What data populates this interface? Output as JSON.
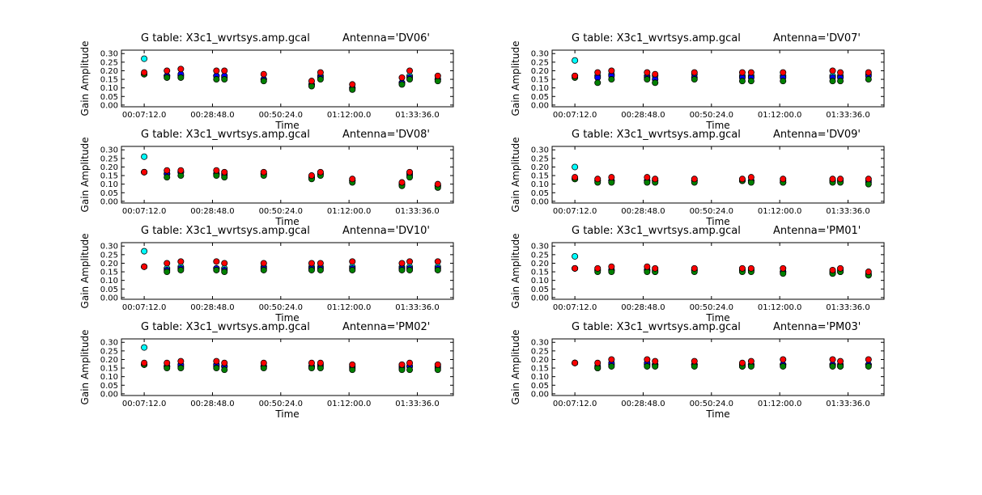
{
  "figure": {
    "background": "#ffffff"
  },
  "colors": {
    "cyan": "#00ffff",
    "blue": "#0000ff",
    "green": "#008000",
    "red": "#ff0000"
  },
  "chart_data": [
    {
      "type": "scatter",
      "title": "G table: X3c1_wvrtsys.amp.gcal",
      "antenna_label": "Antenna='DV06'",
      "xlabel": "Time",
      "ylabel": "Gain Amplitude",
      "x_tick_labels": [
        "00:07:12.0",
        "00:28:48.0",
        "00:50:24.0",
        "01:12:00.0",
        "01:33:36.0"
      ],
      "y_tick_labels": [
        "0.00",
        "0.05",
        "0.10",
        "0.15",
        "0.20",
        "0.25",
        "0.30"
      ],
      "ylim": [
        -0.01,
        0.32
      ],
      "times": [
        "00:07:12",
        "00:14:24",
        "00:18:47",
        "00:30:03",
        "00:32:35",
        "00:45:01",
        "01:00:10",
        "01:02:58",
        "01:13:03",
        "01:28:44",
        "01:31:11",
        "01:40:05"
      ],
      "series": [
        {
          "color": "cyan",
          "values": [
            0.27,
            0.17,
            0.17,
            0.17,
            0.16,
            0.15,
            0.12,
            0.17,
            0.1,
            0.13,
            0.17,
            0.15
          ]
        },
        {
          "color": "blue",
          "values": [
            0.18,
            0.17,
            0.18,
            0.17,
            0.17,
            0.15,
            0.12,
            0.16,
            0.1,
            0.13,
            0.16,
            0.15
          ]
        },
        {
          "color": "green",
          "values": [
            0.18,
            0.16,
            0.16,
            0.15,
            0.15,
            0.14,
            0.11,
            0.15,
            0.09,
            0.12,
            0.15,
            0.14
          ]
        },
        {
          "color": "red",
          "values": [
            0.19,
            0.2,
            0.21,
            0.2,
            0.2,
            0.18,
            0.14,
            0.19,
            0.12,
            0.16,
            0.2,
            0.17
          ]
        }
      ]
    },
    {
      "type": "scatter",
      "title": "G table: X3c1_wvrtsys.amp.gcal",
      "antenna_label": "Antenna='DV07'",
      "xlabel": "Time",
      "ylabel": "Gain Amplitude",
      "x_tick_labels": [
        "00:07:12.0",
        "00:28:48.0",
        "00:50:24.0",
        "01:12:00.0",
        "01:33:36.0"
      ],
      "y_tick_labels": [
        "0.00",
        "0.05",
        "0.10",
        "0.15",
        "0.20",
        "0.25",
        "0.30"
      ],
      "ylim": [
        -0.01,
        0.32
      ],
      "times": [
        "00:07:12",
        "00:14:24",
        "00:18:47",
        "00:30:03",
        "00:32:35",
        "00:45:01",
        "01:00:10",
        "01:02:58",
        "01:13:03",
        "01:28:44",
        "01:31:11",
        "01:40:05"
      ],
      "series": [
        {
          "color": "cyan",
          "values": [
            0.26,
            0.17,
            0.18,
            0.17,
            0.17,
            0.18,
            0.17,
            0.17,
            0.17,
            0.17,
            0.17,
            0.18
          ]
        },
        {
          "color": "blue",
          "values": [
            0.17,
            0.16,
            0.17,
            0.16,
            0.15,
            0.16,
            0.16,
            0.16,
            0.16,
            0.16,
            0.16,
            0.17
          ]
        },
        {
          "color": "green",
          "values": [
            0.16,
            0.13,
            0.15,
            0.15,
            0.13,
            0.15,
            0.14,
            0.14,
            0.14,
            0.14,
            0.14,
            0.15
          ]
        },
        {
          "color": "red",
          "values": [
            0.17,
            0.19,
            0.2,
            0.19,
            0.18,
            0.19,
            0.19,
            0.19,
            0.19,
            0.2,
            0.19,
            0.19
          ]
        }
      ]
    },
    {
      "type": "scatter",
      "title": "G table: X3c1_wvrtsys.amp.gcal",
      "antenna_label": "Antenna='DV08'",
      "xlabel": "Time",
      "ylabel": "Gain Amplitude",
      "x_tick_labels": [
        "00:07:12.0",
        "00:28:48.0",
        "00:50:24.0",
        "01:12:00.0",
        "01:33:36.0"
      ],
      "y_tick_labels": [
        "0.00",
        "0.05",
        "0.10",
        "0.15",
        "0.20",
        "0.25",
        "0.30"
      ],
      "ylim": [
        -0.01,
        0.32
      ],
      "times": [
        "00:07:12",
        "00:14:24",
        "00:18:47",
        "00:30:03",
        "00:32:35",
        "00:45:01",
        "01:00:10",
        "01:02:58",
        "01:13:03",
        "01:28:44",
        "01:31:11",
        "01:40:05"
      ],
      "series": [
        {
          "color": "cyan",
          "values": [
            0.26,
            0.16,
            0.17,
            0.16,
            0.16,
            0.16,
            0.14,
            0.16,
            0.12,
            0.1,
            0.16,
            0.09
          ]
        },
        {
          "color": "blue",
          "values": [
            0.17,
            0.16,
            0.17,
            0.16,
            0.15,
            0.16,
            0.14,
            0.16,
            0.12,
            0.1,
            0.15,
            0.09
          ]
        },
        {
          "color": "green",
          "values": [
            0.17,
            0.14,
            0.15,
            0.15,
            0.14,
            0.15,
            0.13,
            0.15,
            0.11,
            0.09,
            0.14,
            0.08
          ]
        },
        {
          "color": "red",
          "values": [
            0.17,
            0.18,
            0.18,
            0.18,
            0.17,
            0.17,
            0.15,
            0.17,
            0.13,
            0.11,
            0.17,
            0.1
          ]
        }
      ]
    },
    {
      "type": "scatter",
      "title": "G table: X3c1_wvrtsys.amp.gcal",
      "antenna_label": "Antenna='DV09'",
      "xlabel": "Time",
      "ylabel": "Gain Amplitude",
      "x_tick_labels": [
        "00:07:12.0",
        "00:28:48.0",
        "00:50:24.0",
        "01:12:00.0",
        "01:33:36.0"
      ],
      "y_tick_labels": [
        "0.00",
        "0.05",
        "0.10",
        "0.15",
        "0.20",
        "0.25",
        "0.30"
      ],
      "ylim": [
        -0.01,
        0.32
      ],
      "times": [
        "00:07:12",
        "00:14:24",
        "00:18:47",
        "00:30:03",
        "00:32:35",
        "00:45:01",
        "01:00:10",
        "01:02:58",
        "01:13:03",
        "01:28:44",
        "01:31:11",
        "01:40:05"
      ],
      "series": [
        {
          "color": "cyan",
          "values": [
            0.2,
            0.12,
            0.12,
            0.12,
            0.12,
            0.12,
            0.12,
            0.12,
            0.12,
            0.12,
            0.12,
            0.12
          ]
        },
        {
          "color": "blue",
          "values": [
            0.13,
            0.12,
            0.12,
            0.12,
            0.12,
            0.12,
            0.12,
            0.12,
            0.11,
            0.12,
            0.12,
            0.11
          ]
        },
        {
          "color": "green",
          "values": [
            0.13,
            0.11,
            0.11,
            0.11,
            0.11,
            0.11,
            0.12,
            0.11,
            0.11,
            0.11,
            0.11,
            0.1
          ]
        },
        {
          "color": "red",
          "values": [
            0.14,
            0.13,
            0.14,
            0.14,
            0.13,
            0.13,
            0.13,
            0.14,
            0.13,
            0.13,
            0.13,
            0.13
          ]
        }
      ]
    },
    {
      "type": "scatter",
      "title": "G table: X3c1_wvrtsys.amp.gcal",
      "antenna_label": "Antenna='DV10'",
      "xlabel": "Time",
      "ylabel": "Gain Amplitude",
      "x_tick_labels": [
        "00:07:12.0",
        "00:28:48.0",
        "00:50:24.0",
        "01:12:00.0",
        "01:33:36.0"
      ],
      "y_tick_labels": [
        "0.00",
        "0.05",
        "0.10",
        "0.15",
        "0.20",
        "0.25",
        "0.30"
      ],
      "ylim": [
        -0.01,
        0.32
      ],
      "times": [
        "00:07:12",
        "00:14:24",
        "00:18:47",
        "00:30:03",
        "00:32:35",
        "00:45:01",
        "01:00:10",
        "01:02:58",
        "01:13:03",
        "01:28:44",
        "01:31:11",
        "01:40:05"
      ],
      "series": [
        {
          "color": "cyan",
          "values": [
            0.27,
            0.17,
            0.18,
            0.17,
            0.17,
            0.18,
            0.18,
            0.18,
            0.18,
            0.18,
            0.18,
            0.18
          ]
        },
        {
          "color": "blue",
          "values": [
            0.18,
            0.16,
            0.17,
            0.17,
            0.16,
            0.17,
            0.17,
            0.17,
            0.17,
            0.17,
            0.17,
            0.17
          ]
        },
        {
          "color": "green",
          "values": [
            0.18,
            0.15,
            0.16,
            0.16,
            0.15,
            0.16,
            0.16,
            0.16,
            0.16,
            0.16,
            0.16,
            0.16
          ]
        },
        {
          "color": "red",
          "values": [
            0.18,
            0.2,
            0.21,
            0.21,
            0.2,
            0.2,
            0.2,
            0.2,
            0.21,
            0.2,
            0.21,
            0.21
          ]
        }
      ]
    },
    {
      "type": "scatter",
      "title": "G table: X3c1_wvrtsys.amp.gcal",
      "antenna_label": "Antenna='PM01'",
      "xlabel": "Time",
      "ylabel": "Gain Amplitude",
      "x_tick_labels": [
        "00:07:12.0",
        "00:28:48.0",
        "00:50:24.0",
        "01:12:00.0",
        "01:33:36.0"
      ],
      "y_tick_labels": [
        "0.00",
        "0.05",
        "0.10",
        "0.15",
        "0.20",
        "0.25",
        "0.30"
      ],
      "ylim": [
        -0.01,
        0.32
      ],
      "times": [
        "00:07:12",
        "00:14:24",
        "00:18:47",
        "00:30:03",
        "00:32:35",
        "00:45:01",
        "01:00:10",
        "01:02:58",
        "01:13:03",
        "01:28:44",
        "01:31:11",
        "01:40:05"
      ],
      "series": [
        {
          "color": "cyan",
          "values": [
            0.24,
            0.16,
            0.16,
            0.16,
            0.16,
            0.16,
            0.16,
            0.16,
            0.15,
            0.14,
            0.15,
            0.13
          ]
        },
        {
          "color": "blue",
          "values": [
            0.17,
            0.16,
            0.16,
            0.16,
            0.15,
            0.16,
            0.16,
            0.16,
            0.15,
            0.15,
            0.16,
            0.14
          ]
        },
        {
          "color": "green",
          "values": [
            0.17,
            0.15,
            0.15,
            0.15,
            0.15,
            0.15,
            0.15,
            0.15,
            0.14,
            0.14,
            0.15,
            0.13
          ]
        },
        {
          "color": "red",
          "values": [
            0.17,
            0.17,
            0.18,
            0.18,
            0.17,
            0.17,
            0.17,
            0.17,
            0.17,
            0.16,
            0.17,
            0.15
          ]
        }
      ]
    },
    {
      "type": "scatter",
      "title": "G table: X3c1_wvrtsys.amp.gcal",
      "antenna_label": "Antenna='PM02'",
      "xlabel": "Time",
      "ylabel": "Gain Amplitude",
      "x_tick_labels": [
        "00:07:12.0",
        "00:28:48.0",
        "00:50:24.0",
        "01:12:00.0",
        "01:33:36.0"
      ],
      "y_tick_labels": [
        "0.00",
        "0.05",
        "0.10",
        "0.15",
        "0.20",
        "0.25",
        "0.30"
      ],
      "ylim": [
        -0.01,
        0.32
      ],
      "times": [
        "00:07:12",
        "00:14:24",
        "00:18:47",
        "00:30:03",
        "00:32:35",
        "00:45:01",
        "01:00:10",
        "01:02:58",
        "01:13:03",
        "01:28:44",
        "01:31:11",
        "01:40:05"
      ],
      "series": [
        {
          "color": "cyan",
          "values": [
            0.27,
            0.16,
            0.16,
            0.16,
            0.16,
            0.16,
            0.16,
            0.16,
            0.15,
            0.15,
            0.16,
            0.15
          ]
        },
        {
          "color": "blue",
          "values": [
            0.17,
            0.16,
            0.17,
            0.17,
            0.16,
            0.16,
            0.16,
            0.17,
            0.16,
            0.16,
            0.16,
            0.16
          ]
        },
        {
          "color": "green",
          "values": [
            0.17,
            0.15,
            0.15,
            0.15,
            0.14,
            0.15,
            0.15,
            0.15,
            0.14,
            0.14,
            0.14,
            0.14
          ]
        },
        {
          "color": "red",
          "values": [
            0.18,
            0.18,
            0.19,
            0.19,
            0.18,
            0.18,
            0.18,
            0.18,
            0.17,
            0.17,
            0.18,
            0.17
          ]
        }
      ]
    },
    {
      "type": "scatter",
      "title": "G table: X3c1_wvrtsys.amp.gcal",
      "antenna_label": "Antenna='PM03'",
      "xlabel": "Time",
      "ylabel": "Gain Amplitude",
      "x_tick_labels": [
        "00:07:12.0",
        "00:28:48.0",
        "00:50:24.0",
        "01:12:00.0",
        "01:33:36.0"
      ],
      "y_tick_labels": [
        "0.00",
        "0.05",
        "0.10",
        "0.15",
        "0.20",
        "0.25",
        "0.30"
      ],
      "ylim": [
        -0.01,
        0.32
      ],
      "times": [
        "00:07:12",
        "00:14:24",
        "00:18:47",
        "00:30:03",
        "00:32:35",
        "00:45:01",
        "01:00:10",
        "01:02:58",
        "01:13:03",
        "01:28:44",
        "01:31:11",
        "01:40:05"
      ],
      "series": [
        {
          "color": "cyan",
          "values": [
            0.18,
            0.15,
            0.17,
            0.17,
            0.17,
            0.17,
            0.16,
            0.17,
            0.17,
            0.17,
            0.16,
            0.17
          ]
        },
        {
          "color": "blue",
          "values": [
            0.18,
            0.16,
            0.18,
            0.18,
            0.17,
            0.17,
            0.17,
            0.17,
            0.17,
            0.17,
            0.17,
            0.17
          ]
        },
        {
          "color": "green",
          "values": [
            0.18,
            0.15,
            0.16,
            0.16,
            0.16,
            0.16,
            0.16,
            0.16,
            0.16,
            0.16,
            0.16,
            0.16
          ]
        },
        {
          "color": "red",
          "values": [
            0.18,
            0.18,
            0.2,
            0.2,
            0.19,
            0.19,
            0.18,
            0.19,
            0.2,
            0.2,
            0.19,
            0.2
          ]
        }
      ]
    }
  ]
}
